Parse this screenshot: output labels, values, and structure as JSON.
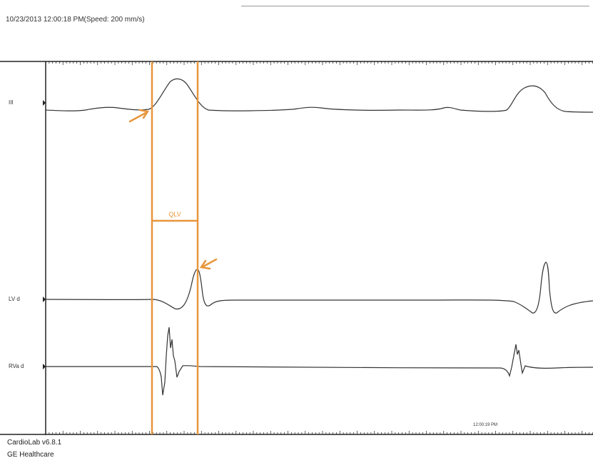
{
  "header": {
    "timestamp": "10/23/2013 12:00:18 PM(Speed: 200 mm/s)"
  },
  "leads": [
    {
      "label": "III"
    },
    {
      "label": "LV d"
    },
    {
      "label": "RVa d"
    }
  ],
  "annotation": {
    "label": "QLV",
    "color": "#e8963c"
  },
  "time_marker": "12:00:19 PM",
  "footer": {
    "software": "CardioLab v6.8.1",
    "vendor": "GE Healthcare"
  },
  "colors": {
    "trace": "#333333",
    "frame": "#222222",
    "annotation": "#e8963c"
  },
  "chart_data": {
    "type": "line",
    "title": "",
    "series": [
      {
        "name": "III"
      },
      {
        "name": "LV d"
      },
      {
        "name": "RVa d"
      }
    ],
    "annotations": [
      {
        "label": "QLV"
      }
    ],
    "time_marker": "12:00:19 PM"
  }
}
